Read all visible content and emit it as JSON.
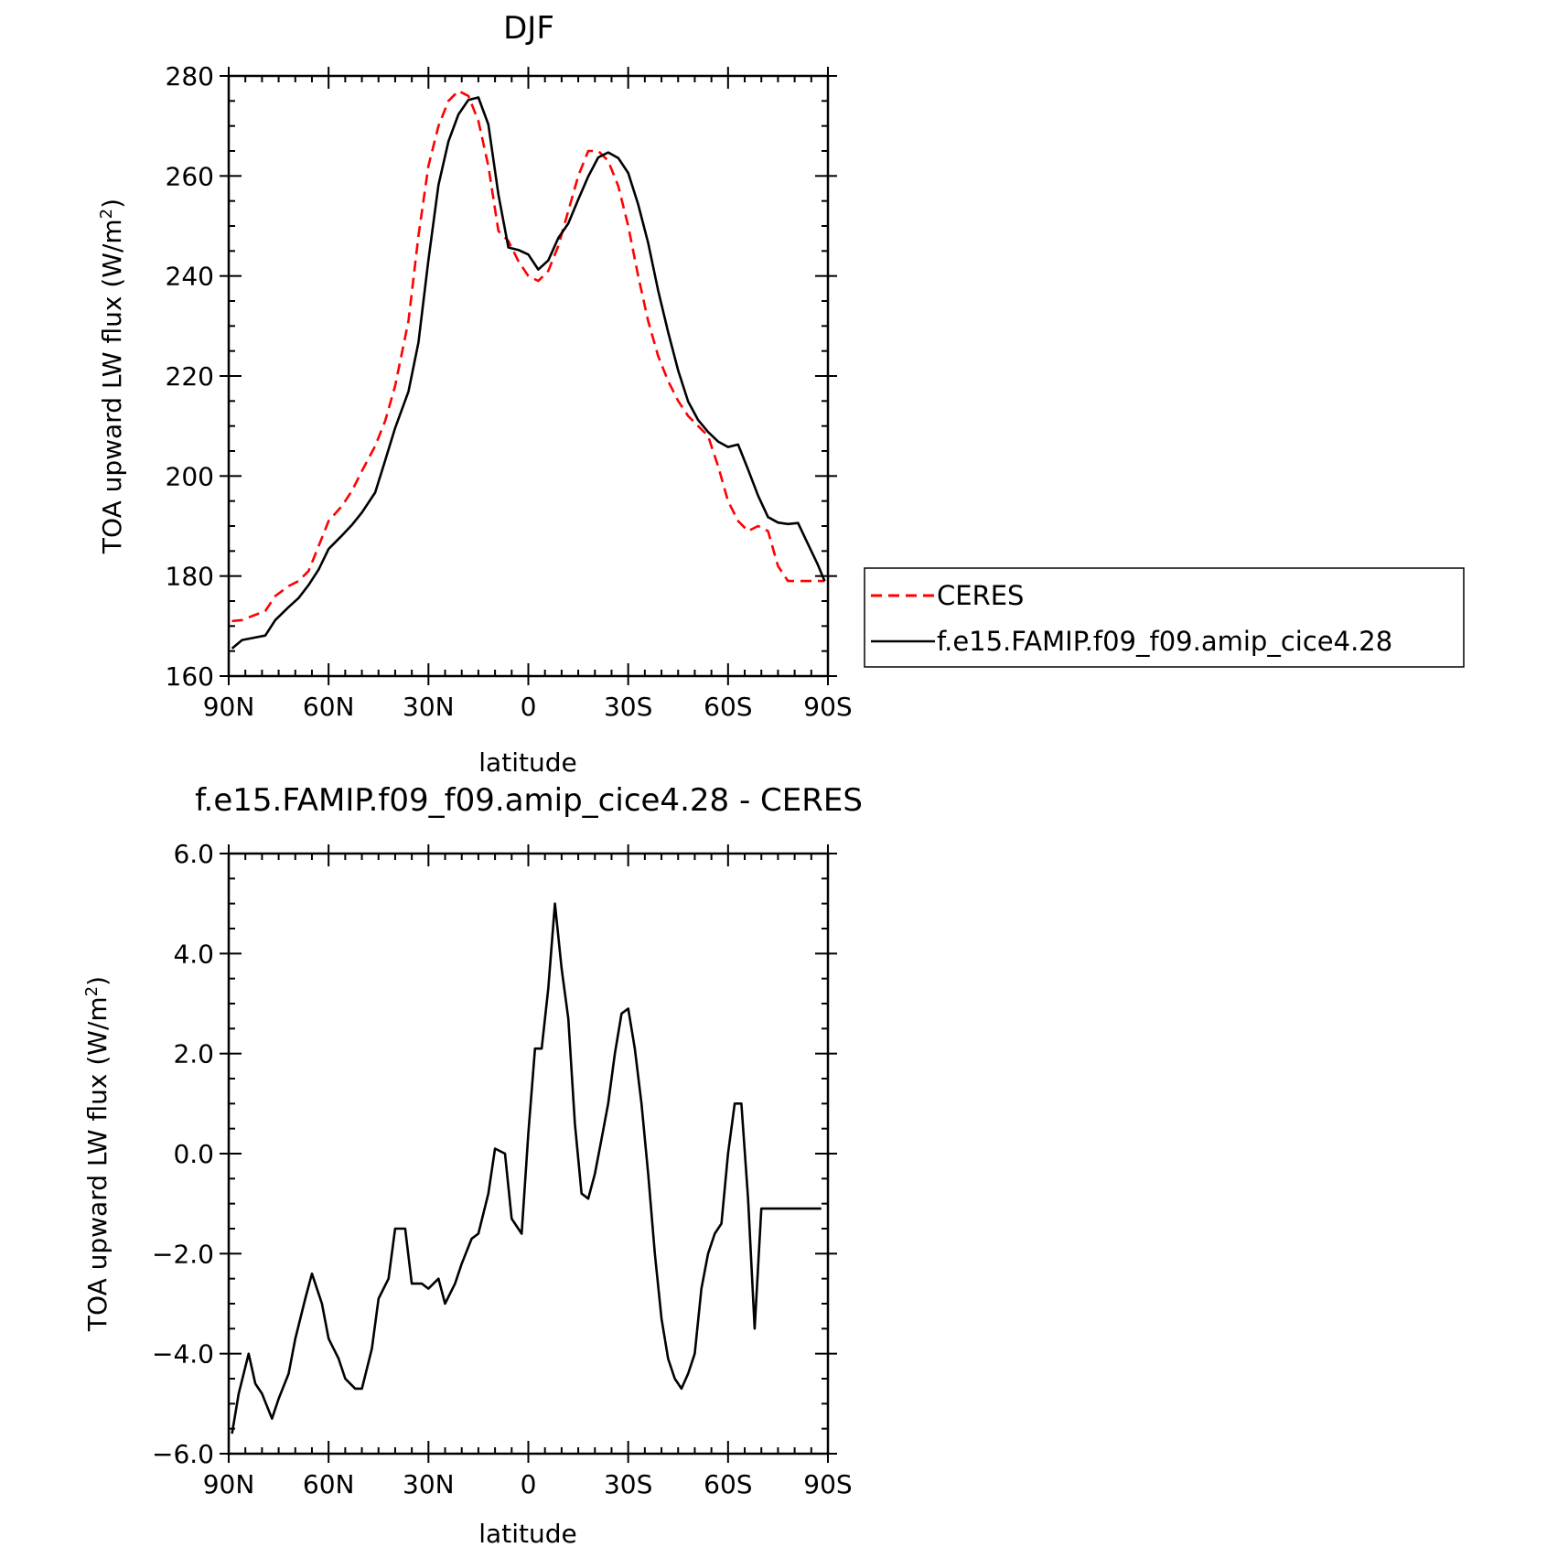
{
  "chart_data": [
    {
      "type": "line",
      "title": "DJF",
      "xlabel": "latitude",
      "ylabel": "TOA upward LW flux (W/m",
      "ylabel_sup": "2",
      "ylabel_end": ")",
      "xlim": [
        90,
        -90
      ],
      "ylim": [
        160,
        280
      ],
      "xticks": [
        90,
        60,
        30,
        0,
        -30,
        -60,
        -90
      ],
      "xtick_labels": [
        "90N",
        "60N",
        "30N",
        "0",
        "30S",
        "60S",
        "90S"
      ],
      "yticks": [
        160,
        180,
        200,
        220,
        240,
        260,
        280
      ],
      "ytick_labels": [
        "160",
        "180",
        "200",
        "220",
        "240",
        "260",
        "280"
      ],
      "legend_position": "right",
      "series": [
        {
          "name": "CERES",
          "color": "#ff0000",
          "dash": "dashed",
          "x": [
            89,
            86,
            83,
            79,
            76,
            72,
            69,
            66,
            63,
            60,
            56,
            53,
            50,
            46,
            43,
            40,
            36,
            33,
            30,
            27,
            24,
            21,
            18,
            15,
            12,
            9,
            6,
            3,
            0,
            -3,
            -6,
            -9,
            -12,
            -15,
            -18,
            -21,
            -24,
            -27,
            -30,
            -33,
            -36,
            -39,
            -42,
            -45,
            -48,
            -51,
            -54,
            -57,
            -60,
            -63,
            -66,
            -69,
            -72,
            -75,
            -78,
            -81,
            -84,
            -87,
            -89
          ],
          "values": [
            171,
            171.2,
            172,
            173,
            176,
            178,
            179,
            181,
            186,
            191,
            194,
            197,
            201,
            206,
            211,
            218,
            231,
            248,
            262,
            270,
            275,
            277,
            276,
            271,
            262,
            249,
            247,
            243,
            240,
            239,
            241,
            246,
            253,
            260,
            265,
            265,
            263,
            258,
            250,
            240,
            231,
            224,
            219,
            215,
            212,
            210,
            208,
            202,
            195,
            191,
            189,
            190,
            189,
            182,
            179,
            179,
            179,
            179,
            179
          ]
        },
        {
          "name": "f.e15.FAMIP.f09_f09.amip_cice4.28",
          "color": "#000000",
          "dash": "solid",
          "x": [
            89,
            86,
            83,
            79,
            76,
            72,
            69,
            66,
            63,
            60,
            56,
            53,
            50,
            46,
            43,
            40,
            36,
            33,
            30,
            27,
            24,
            21,
            18,
            15,
            12,
            9,
            6,
            3,
            0,
            -3,
            -6,
            -9,
            -12,
            -15,
            -18,
            -21,
            -24,
            -27,
            -30,
            -33,
            -36,
            -39,
            -42,
            -45,
            -48,
            -51,
            -54,
            -57,
            -60,
            -63,
            -66,
            -69,
            -72,
            -75,
            -78,
            -81,
            -84,
            -87,
            -89
          ],
          "values": [
            165.5,
            167.2,
            167.6,
            168.1,
            171.2,
            173.8,
            175.6,
            178.2,
            181.3,
            185.4,
            188.1,
            190.2,
            192.7,
            196.7,
            203.1,
            209.6,
            216.9,
            226.7,
            243.2,
            258.2,
            266.9,
            272.3,
            275.2,
            275.7,
            270.3,
            256.3,
            245.7,
            245.2,
            244.3,
            241.3,
            243.1,
            247.6,
            250.5,
            255.3,
            259.9,
            263.7,
            264.7,
            263.6,
            260.6,
            254.3,
            246.6,
            237.1,
            228.8,
            221.1,
            214.9,
            211.2,
            208.8,
            206.9,
            205.8,
            206.3,
            201.3,
            196.1,
            191.8,
            190.7,
            190.4,
            190.6,
            186.4,
            182.2,
            179
          ]
        }
      ]
    },
    {
      "type": "line",
      "title": "f.e15.FAMIP.f09_f09.amip_cice4.28 - CERES",
      "xlabel": "latitude",
      "ylabel": "TOA upward LW flux (W/m",
      "ylabel_sup": "2",
      "ylabel_end": ")",
      "xlim": [
        90,
        -90
      ],
      "ylim": [
        -6,
        6
      ],
      "xticks": [
        90,
        60,
        30,
        0,
        -30,
        -60,
        -90
      ],
      "xtick_labels": [
        "90N",
        "60N",
        "30N",
        "0",
        "30S",
        "60S",
        "90S"
      ],
      "yticks": [
        -6,
        -4,
        -2,
        0,
        2,
        4,
        6
      ],
      "ytick_labels": [
        "−6.0",
        "−4.0",
        "−2.0",
        "0.0",
        "2.0",
        "4.0",
        "6.0"
      ],
      "series": [
        {
          "color": "#000000",
          "dash": "solid",
          "x": [
            89,
            87,
            84,
            82,
            80,
            77,
            75,
            72,
            70,
            67,
            65,
            62,
            60,
            57,
            55,
            52,
            50,
            47,
            45,
            42,
            40,
            37,
            35,
            32,
            30,
            27,
            25,
            22,
            20,
            17,
            15,
            12,
            10,
            7,
            5,
            2,
            0,
            -2,
            -4,
            -6,
            -8,
            -10,
            -12,
            -14,
            -16,
            -18,
            -20,
            -22,
            -24,
            -26,
            -28,
            -30,
            -32,
            -34,
            -36,
            -38,
            -40,
            -42,
            -44,
            -46,
            -48,
            -50,
            -52,
            -54,
            -56,
            -58,
            -60,
            -62,
            -64,
            -66,
            -68,
            -70,
            -72,
            -74,
            -76,
            -78,
            -80,
            -82,
            -84,
            -86,
            -88
          ],
          "values": [
            -5.6,
            -4.8,
            -4.0,
            -4.6,
            -4.8,
            -5.3,
            -4.9,
            -4.4,
            -3.7,
            -2.9,
            -2.4,
            -3.0,
            -3.7,
            -4.1,
            -4.5,
            -4.7,
            -4.7,
            -3.9,
            -2.9,
            -2.5,
            -1.5,
            -1.5,
            -2.6,
            -2.6,
            -2.7,
            -2.5,
            -3.0,
            -2.6,
            -2.2,
            -1.7,
            -1.6,
            -0.8,
            0.1,
            0.0,
            -1.3,
            -1.6,
            0.4,
            2.1,
            2.1,
            3.3,
            5.0,
            3.7,
            2.7,
            0.6,
            -0.8,
            -0.9,
            -0.4,
            0.3,
            1.0,
            2.0,
            2.8,
            2.9,
            2.1,
            1.0,
            -0.4,
            -2.0,
            -3.3,
            -4.1,
            -4.5,
            -4.7,
            -4.4,
            -4.0,
            -2.7,
            -2.0,
            -1.6,
            -1.4,
            0.0,
            1.0,
            1.0,
            -0.9,
            -3.5,
            -1.1,
            -1.1,
            -1.1,
            -1.1,
            -1.1,
            -1.1,
            -1.1,
            -1.1,
            -1.1,
            -1.1
          ]
        }
      ]
    }
  ]
}
